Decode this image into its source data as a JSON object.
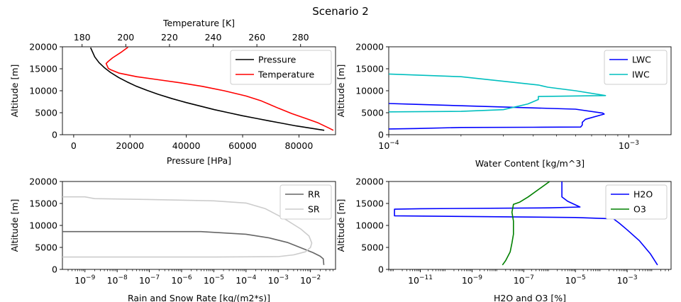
{
  "figure": {
    "title": "Scenario 2"
  },
  "chart_data": [
    {
      "id": "p1",
      "type": "line",
      "xlabel": "Pressure [HPa]",
      "ylabel": "Altitude [m]",
      "xlim": [
        -4000,
        93000
      ],
      "ylim": [
        0,
        20000
      ],
      "xticks": [
        0,
        20000,
        40000,
        60000,
        80000
      ],
      "xtick_labels": [
        "0",
        "20000",
        "40000",
        "60000",
        "80000"
      ],
      "yticks": [
        0,
        5000,
        10000,
        15000,
        20000
      ],
      "ytick_labels": [
        "0",
        "5000",
        "10000",
        "15000",
        "20000"
      ],
      "legend_position": "top-right",
      "top_axis": {
        "xlabel": "Temperature [K]",
        "xlim": [
          171,
          296
        ],
        "xticks": [
          180,
          200,
          220,
          240,
          260,
          280
        ],
        "xtick_labels": [
          "180",
          "200",
          "220",
          "240",
          "260",
          "280"
        ]
      },
      "series": [
        {
          "name": "Pressure",
          "color": "#000000",
          "axis": "bottom",
          "x": [
            89000,
            84000,
            79000,
            74000,
            69000,
            65000,
            60000,
            55000,
            50000,
            45000,
            40000,
            35000,
            30000,
            26000,
            22000,
            19000,
            16000,
            13000,
            11000,
            9000,
            7500,
            6000
          ],
          "y": [
            1000,
            1500,
            2000,
            2600,
            3200,
            3700,
            4300,
            5000,
            5700,
            6500,
            7300,
            8200,
            9200,
            10100,
            11100,
            12000,
            13000,
            14200,
            15200,
            16400,
            17700,
            19800
          ]
        },
        {
          "name": "Temperature",
          "color": "#ff0000",
          "axis": "top",
          "x": [
            295,
            293,
            288,
            283,
            276,
            270,
            262,
            255,
            245,
            235,
            225,
            215,
            205,
            197,
            193,
            192,
            191,
            192,
            194,
            198,
            201
          ],
          "y": [
            1000,
            1500,
            2700,
            3600,
            4800,
            6000,
            7700,
            8800,
            10000,
            11000,
            11800,
            12500,
            13200,
            14000,
            14800,
            15100,
            16200,
            16700,
            17500,
            18800,
            19900
          ]
        }
      ]
    },
    {
      "id": "p2",
      "type": "line",
      "xlabel": "Water Content [kg/m^3]",
      "ylabel": "Altitude [m]",
      "xscale": "log",
      "xlim": [
        0.0001,
        0.0015
      ],
      "ylim": [
        0,
        20000
      ],
      "xticks": [
        0.0001,
        0.001
      ],
      "xtick_labels": [
        [
          "10",
          "−4"
        ],
        [
          "10",
          "−3"
        ]
      ],
      "yticks": [
        0,
        5000,
        10000,
        15000,
        20000
      ],
      "ytick_labels": [
        "0",
        "5000",
        "10000",
        "15000",
        "20000"
      ],
      "legend_position": "top-right",
      "series": [
        {
          "name": "LWC",
          "color": "#0000ff",
          "x": [
            0.0001,
            0.00013,
            0.0002,
            0.0004,
            0.00063,
            0.00064,
            0.00064,
            0.00066,
            0.00079,
            0.00078,
            0.0006,
            0.0003,
            0.00013,
            0.0001
          ],
          "y": [
            1300,
            1400,
            1650,
            1700,
            1750,
            2200,
            2800,
            3500,
            4700,
            4900,
            5800,
            6300,
            6900,
            7100
          ]
        },
        {
          "name": "IWC",
          "color": "#00bfbf",
          "x": [
            0.0001,
            0.0002,
            0.0003,
            0.00038,
            0.00042,
            0.00042,
            0.0008,
            0.0006,
            0.00046,
            0.00042,
            0.0002,
            0.0001
          ],
          "y": [
            5200,
            5300,
            5700,
            7000,
            8000,
            8700,
            8900,
            10000,
            10800,
            11300,
            13200,
            13800
          ]
        }
      ]
    },
    {
      "id": "p3",
      "type": "line",
      "xlabel": "Rain and Snow Rate [kg/(m2*s)]",
      "ylabel": "Altitude [m]",
      "xscale": "log",
      "xlim": [
        2e-10,
        0.06
      ],
      "ylim": [
        0,
        20000
      ],
      "xticks": [
        1e-09,
        1e-08,
        1e-07,
        1e-06,
        1e-05,
        0.0001,
        0.001,
        0.01
      ],
      "xtick_labels": [
        [
          "10",
          "−9"
        ],
        [
          "10",
          "−8"
        ],
        [
          "10",
          "−7"
        ],
        [
          "10",
          "−6"
        ],
        [
          "10",
          "−5"
        ],
        [
          "10",
          "−4"
        ],
        [
          "10",
          "−3"
        ],
        [
          "10",
          "−2"
        ]
      ],
      "yticks": [
        0,
        5000,
        10000,
        15000,
        20000
      ],
      "ytick_labels": [
        "0",
        "5000",
        "10000",
        "15000",
        "20000"
      ],
      "legend_position": "top-right",
      "series": [
        {
          "name": "RR",
          "color": "#666666",
          "x": [
            2e-10,
            1e-09,
            1e-07,
            4e-06,
            0.0001,
            0.0005,
            0.002,
            0.006,
            0.012,
            0.02,
            0.025,
            0.026
          ],
          "y": [
            8600,
            8600,
            8600,
            8600,
            8000,
            7200,
            6100,
            4700,
            3800,
            3000,
            2400,
            1000
          ]
        },
        {
          "name": "SR",
          "color": "#cccccc",
          "x": [
            2e-10,
            1e-09,
            2e-09,
            1e-07,
            1e-05,
            0.0001,
            0.0004,
            0.0015,
            0.005,
            0.009,
            0.011,
            0.01,
            0.007,
            0.003,
            0.001,
            1e-05,
            1e-07,
            2e-10
          ],
          "y": [
            16500,
            16500,
            16100,
            15900,
            15600,
            15100,
            13800,
            11600,
            9200,
            7600,
            6000,
            5000,
            4000,
            3300,
            2900,
            2800,
            2800,
            2800
          ]
        }
      ]
    },
    {
      "id": "p4",
      "type": "line",
      "xlabel": "H2O and O3 [%]",
      "ylabel": "Altitude [m]",
      "xscale": "log",
      "xlim": [
        6e-13,
        0.05
      ],
      "ylim": [
        0,
        20000
      ],
      "xticks": [
        1e-11,
        1e-09,
        1e-07,
        1e-05,
        0.001
      ],
      "xtick_labels": [
        [
          "10",
          "−11"
        ],
        [
          "10",
          "−9"
        ],
        [
          "10",
          "−7"
        ],
        [
          "10",
          "−5"
        ],
        [
          "10",
          "−3"
        ]
      ],
      "yticks": [
        0,
        5000,
        10000,
        15000,
        20000
      ],
      "ytick_labels": [
        "0",
        "5000",
        "10000",
        "15000",
        "20000"
      ],
      "legend_position": "top-right",
      "series": [
        {
          "name": "H2O",
          "color": "#0000ff",
          "x": [
            0.015,
            0.008,
            0.003,
            0.001,
            0.0005,
            0.0003,
            1e-05,
            1e-12,
            1e-12,
            1e-11,
            1e-06,
            1.5e-05,
            5e-06,
            3e-06,
            3e-06,
            3e-06
          ],
          "y": [
            1000,
            3500,
            6500,
            9000,
            10500,
            11500,
            11800,
            12200,
            13700,
            13800,
            14000,
            14200,
            15500,
            16500,
            18500,
            20000
          ]
        },
        {
          "name": "O3",
          "color": "#008000",
          "x": [
            1.5e-08,
            2e-08,
            3e-08,
            3.5e-08,
            4e-08,
            4e-08,
            3.5e-08,
            4e-08,
            7e-08,
            1.5e-07,
            4e-07,
            1e-06
          ],
          "y": [
            1000,
            2000,
            4000,
            6000,
            8000,
            11000,
            13000,
            14800,
            15300,
            16500,
            18300,
            20000
          ]
        }
      ]
    }
  ]
}
